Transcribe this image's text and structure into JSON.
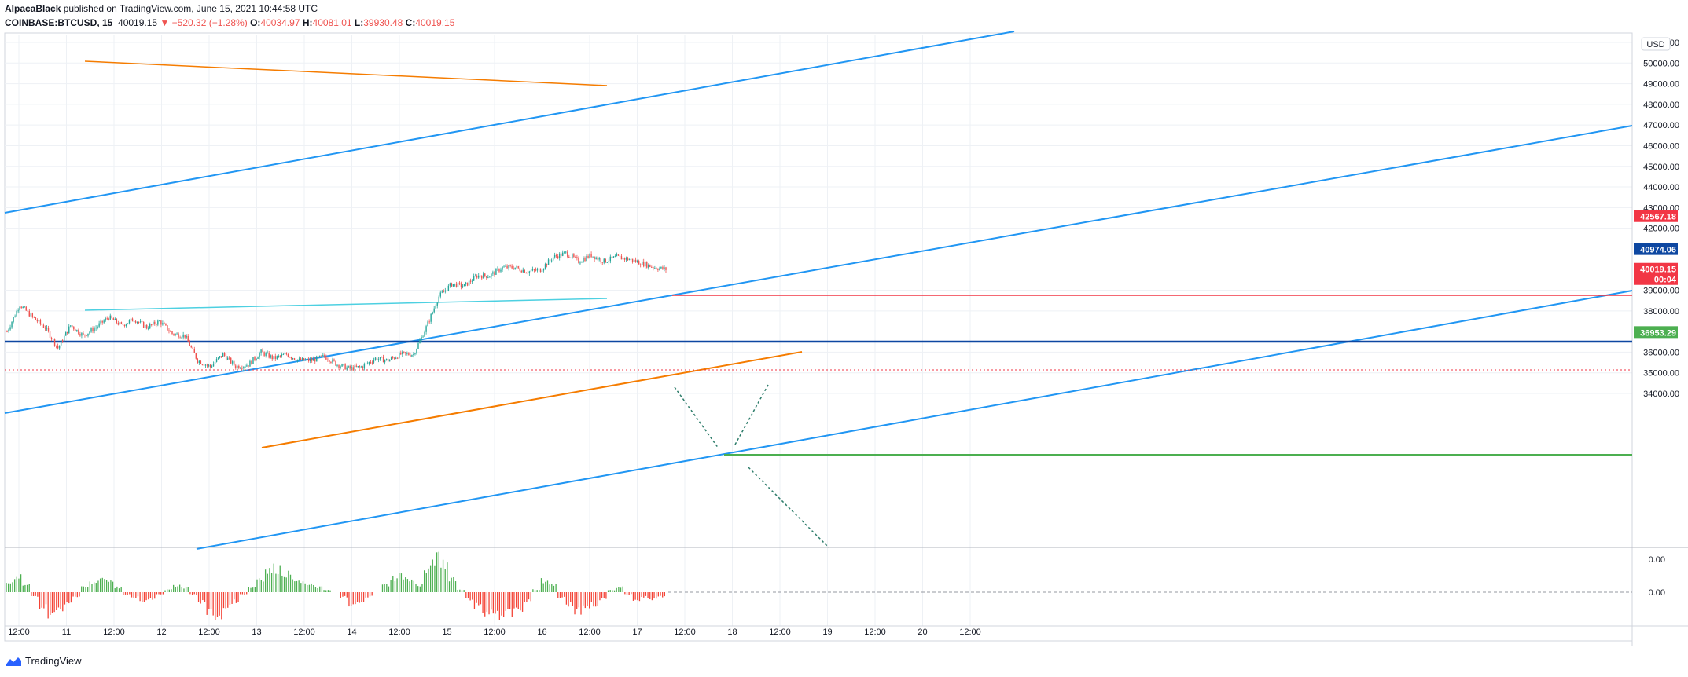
{
  "header": {
    "author": "AlpacaBlack",
    "published": " published on TradingView.com, June 15, 2021 10:44:58 UTC",
    "symbol": "COINBASE:BTCUSD, 15",
    "last": "40019.15",
    "change_arrow": "▼",
    "change": "−520.32 (−1.28%)",
    "o_label": "O:",
    "o": "40034.97",
    "h_label": "H:",
    "h": "40081.01",
    "l_label": "L:",
    "l": "39930.48",
    "c_label": "C:",
    "c": "40019.15"
  },
  "footer": {
    "brand": "TradingView",
    "logo_icon": "tradingview-logo-icon"
  },
  "colors": {
    "up": "#26a69a",
    "down": "#ef5350",
    "trend_blue": "#2196f3",
    "orange": "#f57c00",
    "cyan": "#4dd0e1",
    "navy": "#0d47a1",
    "red_level": "#f23645",
    "green_level": "#4caf50",
    "grid": "#eef1f5",
    "macd_up": "#4caf50",
    "macd_down": "#f44336"
  },
  "chart_data": {
    "type": "candlestick",
    "currency": "USD",
    "y_ticks": [
      "51000.00",
      "50000.00",
      "49000.00",
      "48000.00",
      "47000.00",
      "46000.00",
      "45000.00",
      "44000.00",
      "43000.00",
      "42000.00",
      "39000.00",
      "38000.00",
      "36000.00",
      "35000.00",
      "34000.00"
    ],
    "x_ticks": [
      "12:00",
      "11",
      "12:00",
      "12",
      "12:00",
      "13",
      "12:00",
      "14",
      "12:00",
      "15",
      "12:00",
      "16",
      "12:00",
      "17",
      "12:00",
      "18",
      "12:00",
      "19",
      "12:00",
      "20",
      "12:00"
    ],
    "ylim": [
      33700,
      51700
    ],
    "price_tags": [
      {
        "label": "42567.18",
        "value": 42567.18,
        "color": "#f23645"
      },
      {
        "label": "40974.06",
        "value": 40974.06,
        "color": "#0d47a1"
      },
      {
        "label": "40019.15",
        "sub": "00:04",
        "value": 40019.15,
        "color": "#f23645"
      },
      {
        "label": "36953.29",
        "value": 36953.29,
        "color": "#4caf50"
      }
    ],
    "price_path": [
      [
        0,
        37000
      ],
      [
        1,
        38300
      ],
      [
        2,
        37700
      ],
      [
        3,
        37200
      ],
      [
        4,
        36200
      ],
      [
        5,
        37300
      ],
      [
        6,
        36800
      ],
      [
        7,
        37200
      ],
      [
        8,
        37700
      ],
      [
        9,
        37300
      ],
      [
        10,
        37600
      ],
      [
        11,
        37200
      ],
      [
        12,
        37500
      ],
      [
        13,
        36900
      ],
      [
        14,
        36800
      ],
      [
        15,
        35600
      ],
      [
        16,
        35300
      ],
      [
        17,
        35900
      ],
      [
        18,
        35300
      ],
      [
        19,
        35400
      ],
      [
        20,
        36000
      ],
      [
        21,
        35700
      ],
      [
        22,
        35900
      ],
      [
        23,
        35600
      ],
      [
        24,
        35600
      ],
      [
        25,
        35800
      ],
      [
        26,
        35400
      ],
      [
        27,
        35200
      ],
      [
        28,
        35300
      ],
      [
        29,
        35700
      ],
      [
        30,
        35600
      ],
      [
        31,
        35900
      ],
      [
        32,
        35900
      ],
      [
        33,
        37200
      ],
      [
        34,
        38700
      ],
      [
        35,
        39300
      ],
      [
        36,
        39200
      ],
      [
        37,
        39700
      ],
      [
        38,
        39700
      ],
      [
        39,
        40100
      ],
      [
        40,
        40100
      ],
      [
        41,
        39900
      ],
      [
        42,
        40000
      ],
      [
        43,
        40600
      ],
      [
        44,
        40800
      ],
      [
        45,
        40400
      ],
      [
        46,
        40700
      ],
      [
        47,
        40400
      ],
      [
        48,
        40600
      ],
      [
        49,
        40500
      ],
      [
        50,
        40300
      ],
      [
        51,
        40100
      ],
      [
        52,
        40000
      ]
    ],
    "macd_hist": [
      0.4,
      0.7,
      0.3,
      -0.2,
      -0.6,
      -0.9,
      -0.8,
      -0.5,
      -0.2,
      0.2,
      0.4,
      0.6,
      0.5,
      0.2,
      -0.1,
      -0.2,
      -0.4,
      -0.3,
      -0.1,
      0.1,
      0.3,
      0.2,
      -0.1,
      -0.4,
      -0.9,
      -1.0,
      -0.7,
      -0.4,
      -0.1,
      0.2,
      0.6,
      0.9,
      1.0,
      0.8,
      0.6,
      0.4,
      0.3,
      0.2,
      0.1,
      0.0,
      -0.2,
      -0.5,
      -0.4,
      -0.2,
      0.0,
      0.3,
      0.6,
      0.7,
      0.5,
      0.3,
      0.9,
      1.4,
      1.2,
      0.6,
      0.1,
      -0.3,
      -0.6,
      -0.9,
      -0.8,
      -1.0,
      -0.9,
      -0.7,
      -0.4,
      0.1,
      0.5,
      0.3,
      -0.2,
      -0.5,
      -0.8,
      -0.6,
      -0.5,
      -0.3,
      0.1,
      0.2,
      -0.1,
      -0.3,
      -0.2,
      -0.3,
      -0.2
    ],
    "macd_ticks": [
      "0.00",
      "0.00"
    ]
  }
}
